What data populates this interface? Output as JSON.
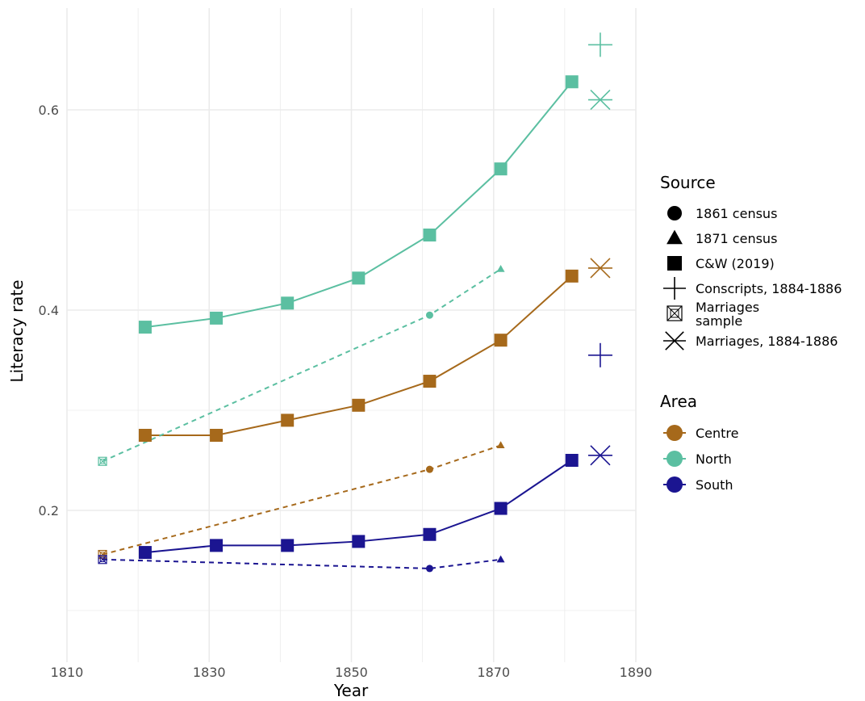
{
  "chart_data": {
    "type": "line",
    "title": "",
    "xlabel": "Year",
    "ylabel": "Literacy rate",
    "xlim": [
      1810,
      1890
    ],
    "ylim": [
      0.1,
      0.7
    ],
    "x_ticks": [
      "1810",
      "1830",
      "1850",
      "1870",
      "1890"
    ],
    "y_ticks": [
      "0.2",
      "0.4",
      "0.6"
    ],
    "grid": true,
    "legend_placement": "right",
    "colors": {
      "Centre": "#a6691b",
      "North": "#5bbfa1",
      "South": "#1b1591"
    },
    "source_legend": {
      "title": "Source",
      "items": [
        {
          "shape": "circle",
          "label": "1861 census"
        },
        {
          "shape": "triangle",
          "label": "1871 census"
        },
        {
          "shape": "square",
          "label": "C&W (2019)"
        },
        {
          "shape": "plus",
          "label": "Conscripts, 1884-1886"
        },
        {
          "shape": "boxx",
          "label": "Marriages\nsample"
        },
        {
          "shape": "asterisk",
          "label": "Marriages, 1884-1886"
        }
      ]
    },
    "area_legend": {
      "title": "Area",
      "items": [
        {
          "area": "Centre",
          "label": "Centre"
        },
        {
          "area": "North",
          "label": "North"
        },
        {
          "area": "South",
          "label": "South"
        }
      ]
    },
    "series": [
      {
        "area": "North",
        "source": "C&W (2019)",
        "x": [
          1821,
          1831,
          1841,
          1851,
          1861,
          1871,
          1881
        ],
        "values": [
          0.383,
          0.392,
          0.407,
          0.432,
          0.475,
          0.541,
          0.628
        ]
      },
      {
        "area": "Centre",
        "source": "C&W (2019)",
        "x": [
          1821,
          1831,
          1841,
          1851,
          1861,
          1871,
          1881
        ],
        "values": [
          0.275,
          0.275,
          0.29,
          0.305,
          0.329,
          0.37,
          0.434
        ]
      },
      {
        "area": "South",
        "source": "C&W (2019)",
        "x": [
          1821,
          1831,
          1841,
          1851,
          1861,
          1871,
          1881
        ],
        "values": [
          0.158,
          0.165,
          0.165,
          0.169,
          0.176,
          0.202,
          0.25
        ]
      },
      {
        "area": "North",
        "source": "census",
        "x": [
          1815,
          1861,
          1871
        ],
        "values": [
          0.249,
          0.395,
          0.441
        ],
        "shapes": [
          "boxx",
          "circle",
          "triangle"
        ]
      },
      {
        "area": "Centre",
        "source": "census",
        "x": [
          1815,
          1861,
          1871
        ],
        "values": [
          0.156,
          0.241,
          0.265
        ],
        "shapes": [
          "boxx",
          "circle",
          "triangle"
        ]
      },
      {
        "area": "South",
        "source": "census",
        "x": [
          1815,
          1861,
          1871
        ],
        "values": [
          0.151,
          0.142,
          0.151
        ],
        "shapes": [
          "boxx",
          "circle",
          "triangle"
        ]
      }
    ],
    "points_1885": [
      {
        "area": "North",
        "shape": "plus",
        "x": 1885,
        "value": 0.665
      },
      {
        "area": "North",
        "shape": "asterisk",
        "x": 1885,
        "value": 0.61
      },
      {
        "area": "Centre",
        "shape": "asterisk",
        "x": 1885,
        "value": 0.442
      },
      {
        "area": "South",
        "shape": "plus",
        "x": 1885,
        "value": 0.355
      },
      {
        "area": "South",
        "shape": "asterisk",
        "x": 1885,
        "value": 0.255
      }
    ]
  }
}
